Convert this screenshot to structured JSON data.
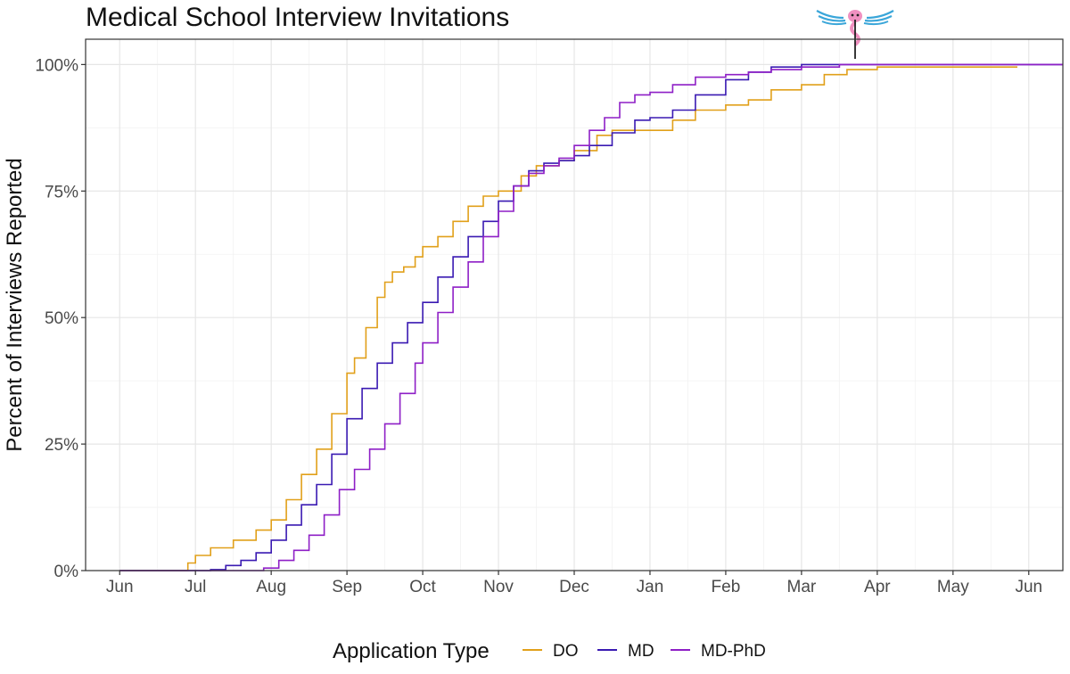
{
  "chart_data": {
    "type": "line",
    "title": "Medical School Interview Invitations",
    "ylabel": "Percent of Interviews Reported",
    "xlabel": "",
    "x_ticks": [
      "Jun",
      "Jul",
      "Aug",
      "Sep",
      "Oct",
      "Nov",
      "Dec",
      "Jan",
      "Feb",
      "Mar",
      "Apr",
      "May",
      "Jun"
    ],
    "y_ticks": [
      "0%",
      "25%",
      "50%",
      "75%",
      "100%"
    ],
    "ylim": [
      0,
      105
    ],
    "x_unit": "month index from Jun (0 = Jun 1)",
    "xlim": [
      -0.45,
      12.45
    ],
    "grid": true,
    "legend": {
      "title": "Application Type",
      "position": "bottom"
    },
    "series": [
      {
        "name": "DO",
        "color": "#E1A01A",
        "x": [
          0.0,
          0.8,
          0.9,
          1.0,
          1.2,
          1.5,
          1.8,
          2.0,
          2.2,
          2.4,
          2.6,
          2.8,
          3.0,
          3.1,
          3.25,
          3.4,
          3.5,
          3.6,
          3.75,
          3.9,
          4.0,
          4.2,
          4.4,
          4.6,
          4.8,
          5.0,
          5.3,
          5.5,
          5.8,
          6.0,
          6.3,
          6.5,
          6.8,
          7.0,
          7.3,
          7.6,
          8.0,
          8.3,
          8.6,
          9.0,
          9.3,
          9.6,
          10.0,
          10.5,
          11.0,
          11.5,
          11.85
        ],
        "y": [
          0,
          0,
          1.5,
          3,
          4.5,
          6,
          8,
          10,
          14,
          19,
          24,
          31,
          39,
          42,
          48,
          54,
          57,
          59,
          60,
          62,
          64,
          66,
          69,
          72,
          74,
          75,
          78,
          80,
          81,
          83,
          86,
          87,
          87,
          87,
          89,
          91,
          92,
          93,
          95,
          96,
          98,
          99,
          99.5,
          99.5,
          99.5,
          99.5,
          99.5
        ]
      },
      {
        "name": "MD",
        "color": "#3A1AB2",
        "x": [
          0.0,
          1.0,
          1.2,
          1.4,
          1.6,
          1.8,
          2.0,
          2.2,
          2.4,
          2.6,
          2.8,
          3.0,
          3.2,
          3.4,
          3.6,
          3.8,
          4.0,
          4.2,
          4.4,
          4.6,
          4.8,
          5.0,
          5.2,
          5.4,
          5.6,
          5.8,
          6.0,
          6.2,
          6.5,
          6.8,
          7.0,
          7.3,
          7.6,
          8.0,
          8.3,
          8.6,
          9.0,
          9.5,
          10.0,
          11.0,
          12.45
        ],
        "y": [
          0,
          0,
          0.2,
          1,
          2,
          3.5,
          6,
          9,
          13,
          17,
          23,
          30,
          36,
          41,
          45,
          49,
          53,
          58,
          62,
          66,
          69,
          73,
          76,
          79,
          80.5,
          81,
          82,
          84,
          86.5,
          89,
          89.5,
          91,
          94,
          97,
          98.5,
          99.5,
          100,
          100,
          100,
          100,
          100
        ]
      },
      {
        "name": "MD-PhD",
        "color": "#8E1FC6",
        "x": [
          0.0,
          1.7,
          1.9,
          2.1,
          2.3,
          2.5,
          2.7,
          2.9,
          3.1,
          3.3,
          3.5,
          3.7,
          3.9,
          4.0,
          4.2,
          4.4,
          4.6,
          4.8,
          5.0,
          5.2,
          5.4,
          5.6,
          5.8,
          6.0,
          6.2,
          6.4,
          6.6,
          6.8,
          7.0,
          7.3,
          7.6,
          8.0,
          8.3,
          8.6,
          9.0,
          9.5,
          10.0,
          11.0,
          12.45
        ],
        "y": [
          0,
          0,
          0.5,
          2,
          4,
          7,
          11,
          16,
          20,
          24,
          29,
          35,
          41,
          45,
          51,
          56,
          61,
          66,
          71,
          76,
          78.5,
          80,
          81.5,
          84,
          87,
          89.5,
          92.5,
          94,
          94.5,
          96,
          97.5,
          98,
          98.5,
          99,
          99.5,
          100,
          100,
          100,
          100
        ]
      }
    ]
  }
}
